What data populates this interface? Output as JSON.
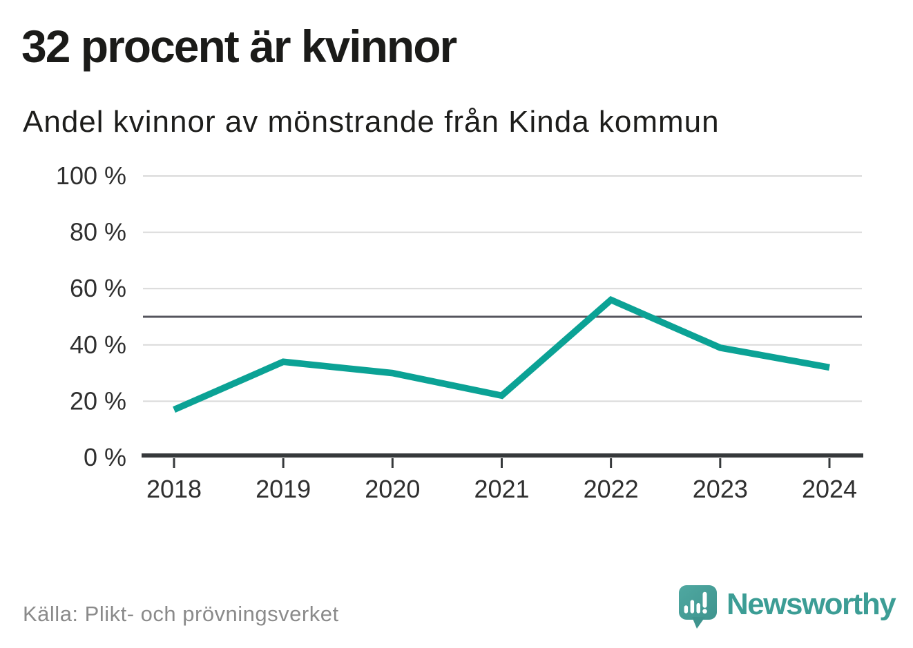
{
  "header": {
    "title": "32 procent är kvinnor",
    "subtitle": "Andel kvinnor av mönstrande från Kinda kommun"
  },
  "chart_data": {
    "type": "line",
    "title": "32 procent är kvinnor",
    "subtitle": "Andel kvinnor av mönstrande från Kinda kommun",
    "categories": [
      "2018",
      "2019",
      "2020",
      "2021",
      "2022",
      "2023",
      "2024"
    ],
    "series": [
      {
        "name": "Andel kvinnor av mönstrande",
        "values": [
          17,
          34,
          30,
          22,
          56,
          39,
          32
        ]
      }
    ],
    "unit": "%",
    "ylim": [
      0,
      100
    ],
    "y_axis": {
      "ticks": [
        {
          "value": 0,
          "label": "0 %"
        },
        {
          "value": 20,
          "label": "20 %"
        },
        {
          "value": 40,
          "label": "40 %"
        },
        {
          "value": 60,
          "label": "60 %"
        },
        {
          "value": 80,
          "label": "80 %"
        },
        {
          "value": 100,
          "label": "100 %"
        }
      ]
    },
    "reference_line": {
      "value": 50
    },
    "grid": true,
    "legend": false
  },
  "footer": {
    "source": "Källa: Plikt- och prövningsverket",
    "brand": "Newsworthy"
  },
  "colors": {
    "accent": "#0ba295",
    "grid": "#d9d9d9",
    "reference_line": "#55555d",
    "axis": "#36393b",
    "tick_label": "#2f2f2f",
    "title_color": "#1b1b19",
    "source_gray": "#8a8a8a",
    "logo_bubble": "#4aa29c",
    "logo_bubble_dark": "#3f948e",
    "logo_text": "#3c9d95"
  }
}
